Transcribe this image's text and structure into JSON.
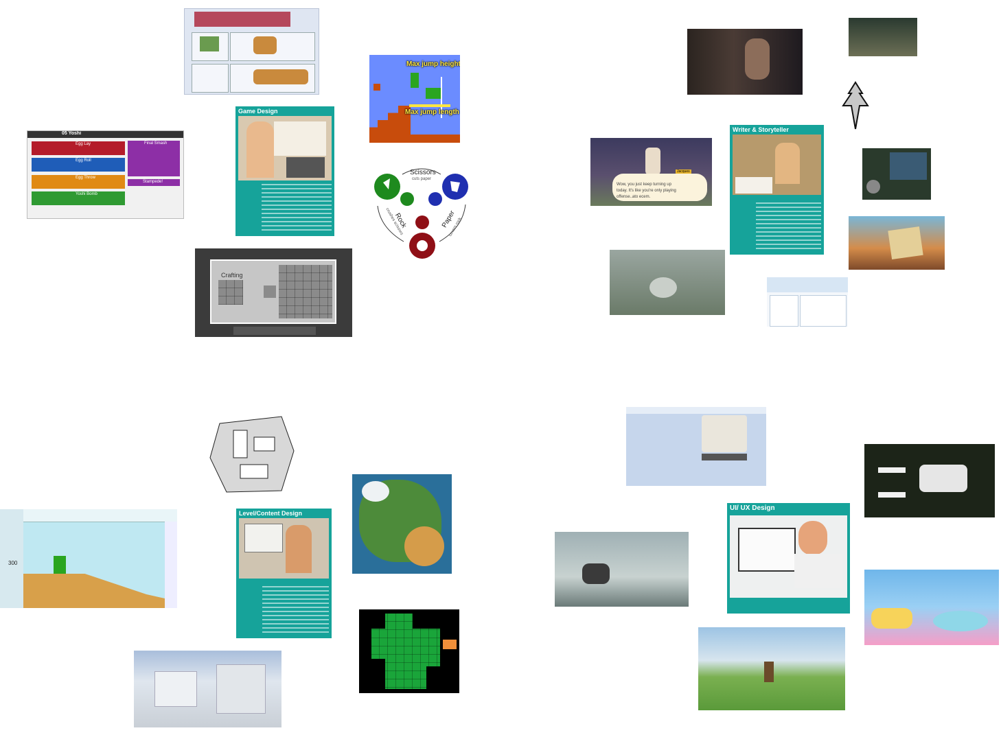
{
  "cards": {
    "game_design": {
      "title": "Game Design"
    },
    "writer": {
      "title": "Writer & Storyteller"
    },
    "level": {
      "title": "Level/Content Design"
    },
    "uiux": {
      "title": "UI/ UX Design"
    }
  },
  "mario_jump": {
    "height_label": "Max jump height",
    "length_label": "Max jump length"
  },
  "rps": {
    "scissors": "Scissors",
    "scissors_sub": "cuts paper",
    "paper": "Paper",
    "paper_sub": "covers rock",
    "rock": "Rock",
    "rock_sub": "crushes scissors"
  },
  "smash": {
    "title": "05 Yoshi",
    "moves": [
      "Egg Lay",
      "Egg Roll",
      "Egg Throw",
      "Yoshi Bomb"
    ],
    "side": [
      "Final Smash",
      "Stampede!"
    ]
  },
  "minecraft": {
    "crafting_label": "Crafting"
  },
  "animal_crossing": {
    "speaker": "Jacques",
    "dialog": "Wow, you just keep turning up today. It's like you're only playing offense..ato ecem."
  },
  "maker": {
    "coins": "300"
  },
  "colors": {
    "teal": "#16a39a",
    "rps_green": "#1e8a1e",
    "rps_blue": "#1f2fb0",
    "rps_red": "#8f0f16"
  },
  "icons": [
    "down-arrow-icon",
    "scissors-icon",
    "paper-icon",
    "rock-icon"
  ]
}
